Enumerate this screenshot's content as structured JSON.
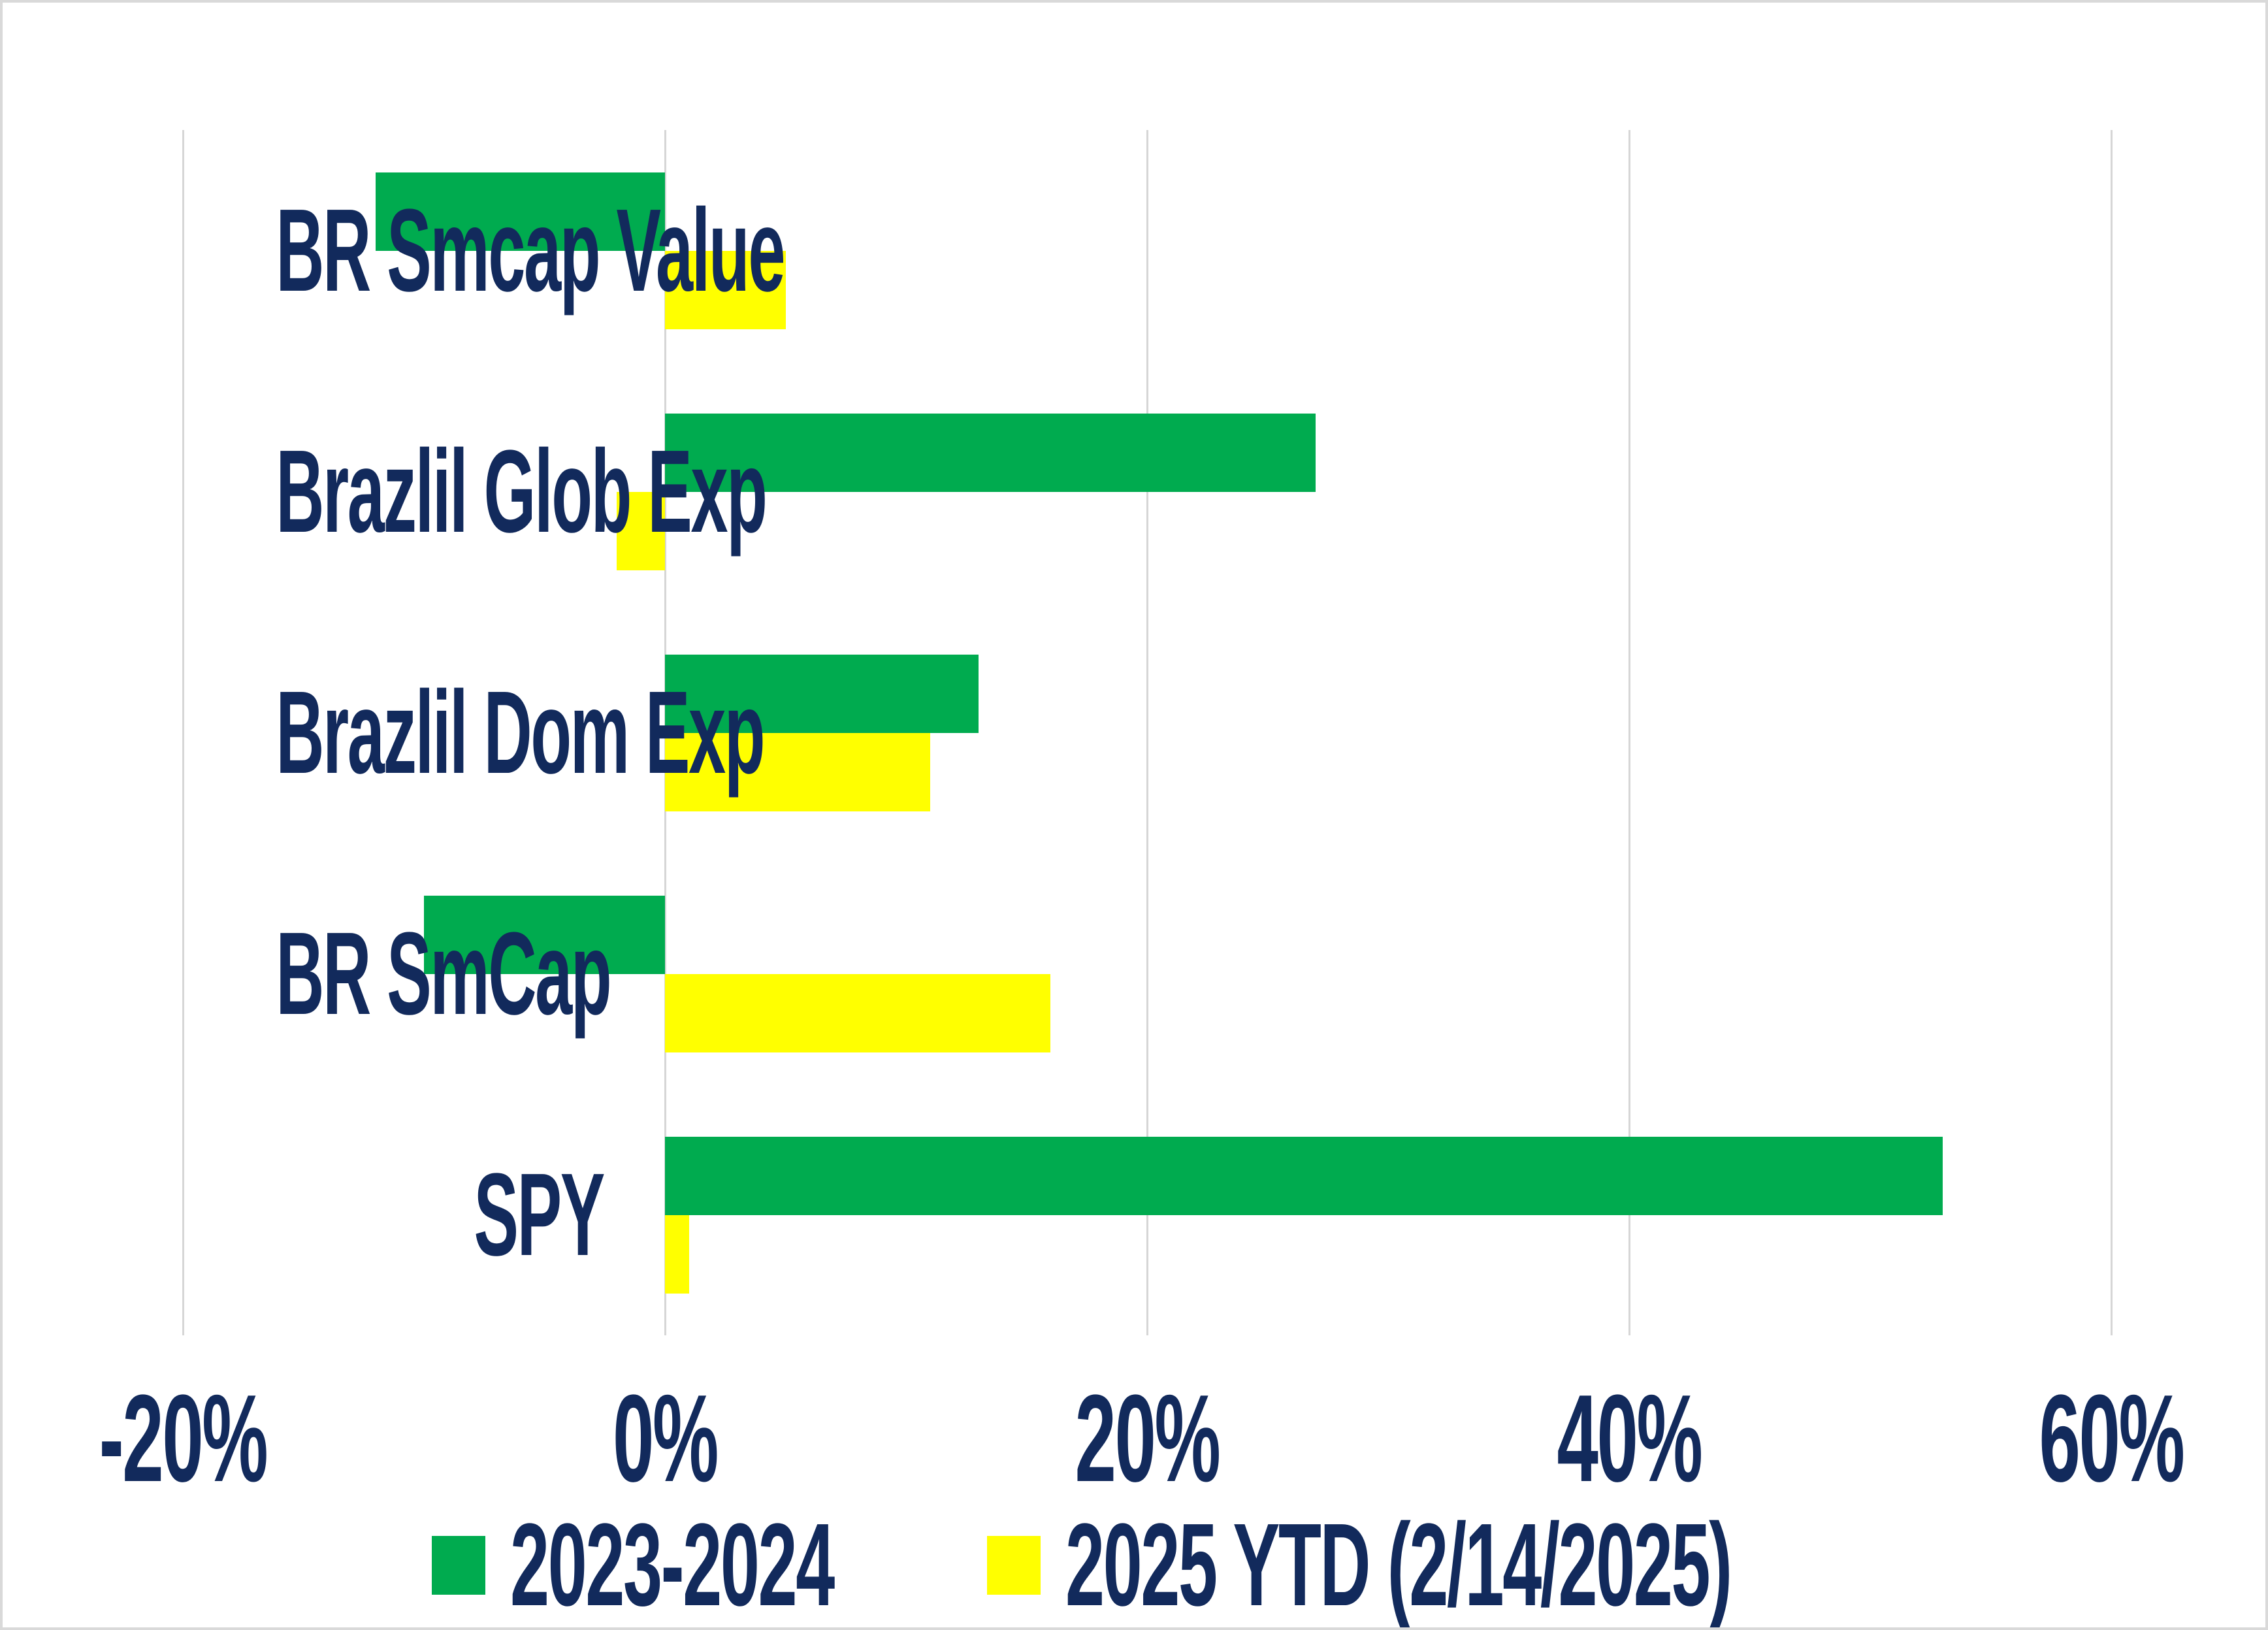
{
  "figure": {
    "background": "#ffffff",
    "border_color": "#d9d9d9",
    "text_color": "#122a5c"
  },
  "chart_data": {
    "type": "bar",
    "orientation": "horizontal",
    "title": "",
    "xlabel": "",
    "ylabel": "",
    "categories": [
      "BR Smcap Value",
      "Brazlil Glob Exp",
      "Brazlil Dom Exp",
      "BR SmCap",
      "SPY"
    ],
    "series": [
      {
        "name": "2023-2024",
        "color": "#00ab4f",
        "values": [
          -12,
          27,
          13,
          -10,
          53
        ]
      },
      {
        "name": "2025 YTD (2/14/2025)",
        "color": "#ffff00",
        "values": [
          5,
          -2,
          11,
          16,
          1
        ]
      }
    ],
    "value_unit": "percent",
    "xlim": [
      -20,
      60
    ],
    "x_ticks": [
      {
        "label": "-20%",
        "value": -20
      },
      {
        "label": "0%",
        "value": 0
      },
      {
        "label": "20%",
        "value": 20
      },
      {
        "label": "40%",
        "value": 40
      },
      {
        "label": "60%",
        "value": 60
      }
    ],
    "grid": true,
    "gridline_color": "#d6d6d6",
    "legend_position": "bottom"
  }
}
